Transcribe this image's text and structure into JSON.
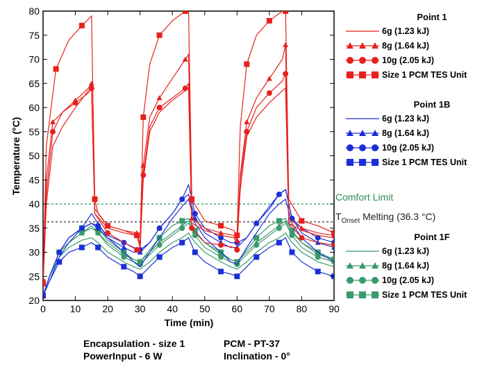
{
  "chart_data": {
    "type": "line",
    "xlabel": "Time (min)",
    "ylabel": "Temperature (°C)",
    "xlim": [
      0,
      90
    ],
    "ylim": [
      20,
      80
    ],
    "x_ticks": [
      0,
      10,
      20,
      30,
      40,
      50,
      60,
      70,
      80,
      90
    ],
    "y_ticks": [
      20,
      25,
      30,
      35,
      40,
      45,
      50,
      55,
      60,
      65,
      70,
      75,
      80
    ],
    "grid": false,
    "legend_position": "right",
    "groups": [
      {
        "title": "Point 1",
        "color": "#e8201c",
        "series": [
          {
            "name": "6g (1.23 kJ)",
            "marker": "none",
            "x": [
              0,
              1,
              3,
              6,
              10,
              14,
              15,
              16,
              20,
              25,
              29,
              30,
              31,
              33,
              36,
              40,
              44,
              45,
              46,
              50,
              55,
              59,
              60,
              61,
              63,
              66,
              70,
              74,
              75,
              76,
              80,
              85,
              90
            ],
            "y": [
              23,
              40,
              52,
              56,
              60,
              63.5,
              64,
              38,
              35,
              34,
              33.5,
              31,
              45,
              55,
              59,
              61.5,
              63.5,
              64,
              36,
              34.5,
              33.5,
              33,
              32,
              43,
              54,
              58,
              61,
              63.5,
              64,
              36,
              34.5,
              33.5,
              33
            ]
          },
          {
            "name": "8g (1.64 kJ)",
            "marker": "triangle",
            "x": [
              0,
              1,
              3,
              6,
              10,
              14,
              15,
              16,
              20,
              25,
              29,
              30,
              31,
              33,
              36,
              40,
              44,
              45,
              46,
              50,
              55,
              59,
              60,
              61,
              63,
              66,
              70,
              74,
              75,
              76,
              80,
              85,
              90
            ],
            "y": [
              23.5,
              45,
              57,
              59,
              61.5,
              64,
              65,
              39,
              35.5,
              34.5,
              34,
              31.5,
              48,
              58,
              62,
              66,
              70,
              71,
              37,
              35,
              34,
              33.5,
              32.5,
              46,
              57,
              62,
              66,
              70,
              73,
              37,
              35,
              34,
              33.5
            ]
          },
          {
            "name": "10g (2.05 kJ)",
            "marker": "circle",
            "x": [
              0,
              1,
              3,
              6,
              10,
              14,
              15,
              16,
              20,
              25,
              29,
              30,
              31,
              33,
              36,
              40,
              44,
              45,
              46,
              50,
              55,
              59,
              60,
              61,
              63,
              66,
              70,
              74,
              75,
              76,
              80,
              85,
              90
            ],
            "y": [
              24,
              42,
              55,
              59,
              61,
              63,
              64,
              38,
              34,
              32,
              30.5,
              30,
              46,
              56,
              60,
              62,
              64,
              65,
              35,
              32,
              31.5,
              31,
              30.5,
              45,
              55,
              60,
              63,
              65.5,
              67,
              36,
              33,
              32,
              31.5
            ]
          },
          {
            "name": "Size 1 PCM TES Unit",
            "marker": "square",
            "x": [
              0,
              1,
              4,
              8,
              12,
              15,
              16,
              17,
              20,
              25,
              29,
              30,
              31,
              33,
              36,
              40,
              44,
              45,
              46,
              50,
              55,
              59,
              60,
              61,
              63,
              66,
              70,
              74,
              75,
              76,
              80,
              85,
              90
            ],
            "y": [
              23.5,
              52,
              68,
              74,
              77,
              79,
              41,
              38,
              35.5,
              34.5,
              33.5,
              32,
              58,
              69,
              75,
              78,
              80,
              80,
              41,
              36.5,
              35.5,
              34.5,
              33.5,
              56,
              69,
              75,
              78,
              80,
              80,
              41,
              36.5,
              35.5,
              34
            ]
          }
        ]
      },
      {
        "title": "Point 1B",
        "color": "#1c2fd6",
        "series": [
          {
            "name": "6g (1.23 kJ)",
            "marker": "none",
            "x": [
              0,
              2,
              5,
              8,
              12,
              15,
              17,
              20,
              25,
              28,
              30,
              33,
              36,
              40,
              43,
              45,
              47,
              50,
              55,
              58,
              60,
              63,
              66,
              70,
              73,
              75,
              77,
              80,
              85,
              90
            ],
            "y": [
              21,
              24,
              29,
              32,
              35,
              38,
              36,
              33,
              30,
              28,
              27,
              30,
              33,
              37,
              39.5,
              41,
              36,
              33,
              30,
              28,
              27.5,
              31,
              34,
              38,
              40,
              41,
              36,
              33,
              30,
              28
            ]
          },
          {
            "name": "8g (1.64 kJ)",
            "marker": "triangle",
            "x": [
              0,
              2,
              5,
              8,
              12,
              15,
              17,
              20,
              25,
              28,
              30,
              33,
              36,
              40,
              43,
              45,
              47,
              50,
              55,
              58,
              60,
              63,
              66,
              70,
              73,
              75,
              77,
              80,
              85,
              90
            ],
            "y": [
              21,
              25,
              30,
              33,
              35,
              36,
              35,
              33,
              31,
              30,
              30,
              32,
              35,
              38,
              41,
              42,
              37,
              34,
              32,
              31,
              31,
              33,
              36,
              39.5,
              42,
              43,
              37,
              34,
              32,
              31
            ]
          },
          {
            "name": "10g (2.05 kJ)",
            "marker": "circle",
            "x": [
              0,
              2,
              5,
              8,
              12,
              15,
              17,
              20,
              25,
              28,
              30,
              33,
              36,
              40,
              43,
              45,
              47,
              50,
              55,
              58,
              60,
              63,
              66,
              70,
              73,
              75,
              77,
              80,
              85,
              90
            ],
            "y": [
              21,
              25,
              30,
              33,
              35,
              36,
              35.5,
              33.5,
              32,
              31,
              30.5,
              32,
              35,
              38,
              41,
              44,
              38,
              35,
              33,
              32,
              32,
              33,
              36,
              39,
              42,
              43,
              37,
              35,
              33,
              32
            ]
          },
          {
            "name": "Size 1 PCM TES Unit",
            "marker": "square",
            "x": [
              0,
              2,
              5,
              8,
              12,
              15,
              17,
              20,
              25,
              28,
              30,
              33,
              36,
              40,
              43,
              45,
              47,
              50,
              55,
              58,
              60,
              63,
              66,
              70,
              73,
              75,
              77,
              80,
              85,
              90
            ],
            "y": [
              21,
              24,
              28,
              30,
              31,
              32,
              31,
              29,
              27,
              26,
              25,
              27,
              29,
              31,
              32,
              33,
              30,
              28,
              26,
              25.5,
              25,
              27,
              29,
              31,
              32,
              33,
              30,
              28,
              26,
              25
            ]
          }
        ]
      },
      {
        "title": "Point 1F",
        "color": "#3a9a6b",
        "series": [
          {
            "name": "6g (1.23 kJ)",
            "marker": "none",
            "x": [
              0,
              2,
              5,
              8,
              12,
              15,
              17,
              20,
              25,
              28,
              30,
              33,
              36,
              40,
              43,
              45,
              47,
              50,
              55,
              58,
              60,
              63,
              66,
              70,
              73,
              75,
              77,
              80,
              85,
              90
            ],
            "y": [
              21,
              25,
              29,
              31,
              32.5,
              33,
              32,
              30,
              28,
              27,
              26.5,
              28,
              30,
              32,
              33,
              34,
              32,
              30,
              28,
              27,
              26.5,
              28,
              30,
              32,
              33,
              34,
              32,
              30,
              28,
              27
            ]
          },
          {
            "name": "8g (1.64 kJ)",
            "marker": "triangle",
            "x": [
              0,
              2,
              5,
              8,
              12,
              15,
              17,
              20,
              25,
              28,
              30,
              33,
              36,
              40,
              43,
              45,
              47,
              50,
              55,
              58,
              60,
              63,
              66,
              70,
              73,
              75,
              77,
              80,
              85,
              90
            ],
            "y": [
              21,
              25,
              30,
              32,
              34,
              35.5,
              34,
              32,
              29.5,
              28.5,
              28,
              30,
              32,
              34,
              35.5,
              36.5,
              34,
              32,
              29.5,
              28.5,
              28,
              30,
              32,
              34,
              35.5,
              36.5,
              34,
              32,
              29.5,
              28.5
            ]
          },
          {
            "name": "10g (2.05 kJ)",
            "marker": "circle",
            "x": [
              0,
              2,
              5,
              8,
              12,
              15,
              17,
              20,
              25,
              28,
              30,
              33,
              36,
              40,
              43,
              45,
              47,
              50,
              55,
              58,
              60,
              63,
              66,
              70,
              73,
              75,
              77,
              80,
              85,
              90
            ],
            "y": [
              21,
              25,
              30,
              32,
              34,
              35,
              34,
              31.5,
              29,
              28,
              27.5,
              29.5,
              31.5,
              33.5,
              35,
              36,
              33.5,
              31,
              29,
              28,
              27.5,
              29.5,
              31.5,
              33.5,
              35,
              36,
              33.5,
              31,
              29,
              28
            ]
          },
          {
            "name": "Size 1 PCM TES Unit",
            "marker": "square",
            "x": [
              0,
              2,
              5,
              8,
              12,
              15,
              17,
              20,
              25,
              28,
              30,
              33,
              36,
              40,
              43,
              45,
              47,
              50,
              55,
              58,
              60,
              63,
              66,
              70,
              73,
              75,
              77,
              80,
              85,
              90
            ],
            "y": [
              21,
              25,
              30,
              33,
              35,
              36,
              35,
              32.5,
              30,
              28.5,
              28,
              30.5,
              33,
              35.5,
              36.5,
              37,
              34.5,
              32,
              30,
              28.5,
              28,
              30.5,
              33,
              35.5,
              36.5,
              37,
              34.5,
              32,
              30,
              28.5
            ]
          }
        ]
      }
    ],
    "reference_lines": [
      {
        "name": "Comfort Limit",
        "y": 40,
        "color": "#2e8b57",
        "style": "dashed"
      },
      {
        "name": "T_Onset Melting (36.3 °C)",
        "y": 36.3,
        "color": "#333333",
        "style": "dashed"
      }
    ]
  },
  "annotations": {
    "comfort_limit": "Comfort Limit",
    "t_label": "T",
    "t_subscript": "Onset",
    "t_rest": " Melting (36.3 °C)"
  },
  "footer": {
    "left_line1": "Encapsulation - size 1",
    "left_line2": "PowerInput - 6 W",
    "right_line1": "PCM - PT-37",
    "right_line2": "Inclination - 0°"
  }
}
